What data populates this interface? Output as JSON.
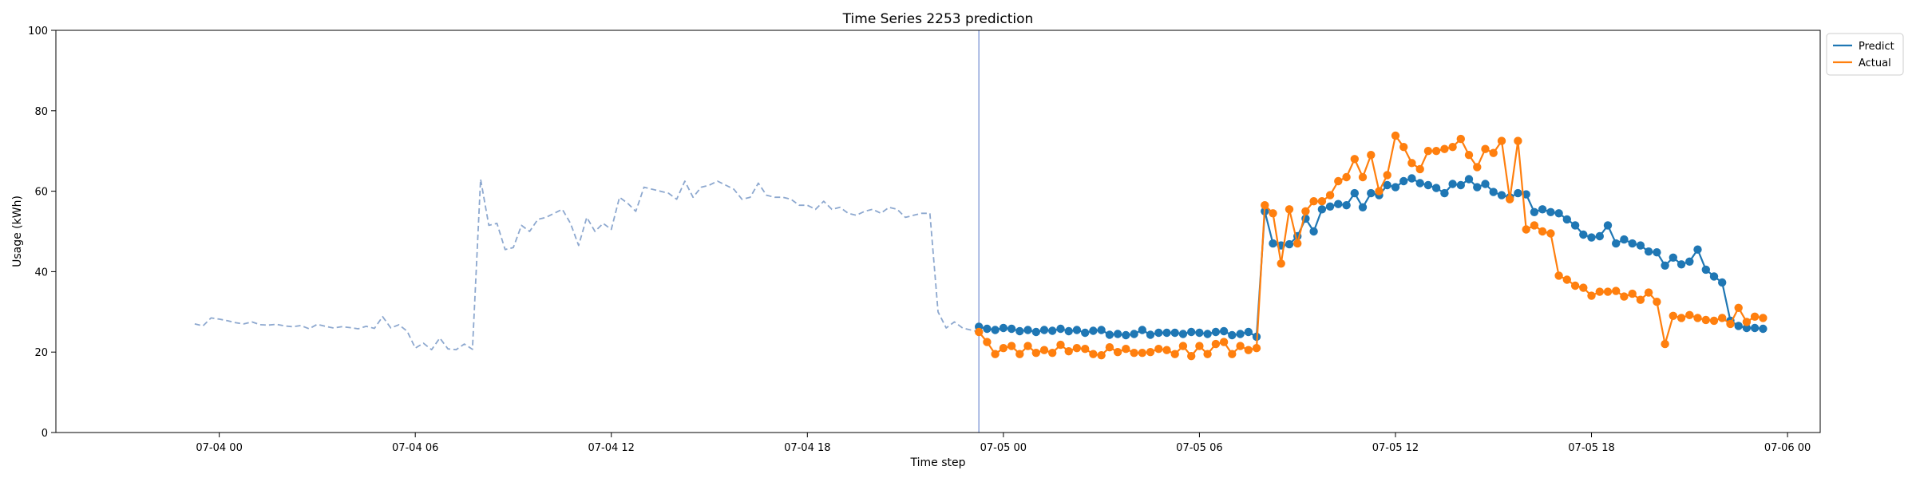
{
  "chart_data": {
    "type": "line",
    "title": "Time Series 2253 prediction",
    "xlabel": "Time step",
    "ylabel": "Usage (kWh)",
    "ylim": [
      0,
      100
    ],
    "y_ticks": [
      0,
      20,
      40,
      60,
      80,
      100
    ],
    "x_ticks": [
      {
        "at": "07-04 00:00",
        "label": "07-04 00"
      },
      {
        "at": "07-04 06:00",
        "label": "07-04 06"
      },
      {
        "at": "07-04 12:00",
        "label": "07-04 12"
      },
      {
        "at": "07-04 18:00",
        "label": "07-04 18"
      },
      {
        "at": "07-05 00:00",
        "label": "07-05 00"
      },
      {
        "at": "07-05 06:00",
        "label": "07-05 06"
      },
      {
        "at": "07-05 12:00",
        "label": "07-05 12"
      },
      {
        "at": "07-05 18:00",
        "label": "07-05 18"
      },
      {
        "at": "07-06 00:00",
        "label": "07-06 00"
      }
    ],
    "xlim": [
      "07-03 19:00",
      "07-06 01:00"
    ],
    "x_step_minutes": 15,
    "grid": false,
    "legend_position": "upper-right-outside",
    "forecast_start_marker": "07-04 23:15",
    "series": [
      {
        "name": "",
        "style": "dashed",
        "color": "#8da8cf",
        "x_start": "07-03 23:15",
        "values": [
          27,
          26.5,
          28.5,
          28.2,
          27.8,
          27.3,
          27.0,
          27.5,
          26.8,
          26.7,
          26.9,
          26.5,
          26.3,
          26.6,
          25.8,
          26.9,
          26.4,
          26.0,
          26.3,
          26.1,
          25.8,
          26.4,
          25.9,
          28.8,
          26.0,
          26.8,
          25.2,
          21.0,
          22.2,
          20.6,
          23.5,
          20.8,
          20.6,
          22.0,
          20.7,
          63.0,
          51.5,
          52.0,
          45.5,
          46.0,
          51.5,
          50.0,
          53.0,
          53.5,
          54.5,
          55.5,
          52.0,
          46.5,
          53.5,
          50.0,
          52.0,
          50.5,
          58.5,
          57.0,
          55.0,
          61.0,
          60.5,
          60.0,
          59.5,
          58.0,
          62.5,
          58.5,
          61.0,
          61.5,
          62.5,
          61.5,
          60.5,
          58.0,
          58.5,
          62.0,
          59.0,
          58.5,
          58.5,
          58.0,
          56.5,
          56.5,
          55.5,
          57.5,
          55.5,
          56.0,
          54.5,
          54.0,
          55.0,
          55.5,
          54.5,
          56.0,
          55.5,
          53.5,
          54.0,
          54.5,
          54.5,
          30.0,
          26.0,
          27.5,
          26.0,
          25.5,
          25.0
        ]
      },
      {
        "name": "Predict",
        "style": "solid-markers",
        "color": "#1f77b4",
        "x_start": "07-04 23:15",
        "values": [
          26.3,
          25.8,
          25.5,
          26.0,
          25.8,
          25.2,
          25.5,
          25.0,
          25.5,
          25.3,
          25.8,
          25.2,
          25.5,
          24.8,
          25.3,
          25.5,
          24.3,
          24.5,
          24.2,
          24.5,
          25.5,
          24.3,
          24.8,
          24.8,
          24.8,
          24.5,
          25.0,
          24.8,
          24.5,
          25.0,
          25.2,
          24.2,
          24.5,
          25.0,
          23.8,
          55.0,
          47.0,
          46.5,
          46.8,
          48.8,
          53.2,
          50.0,
          55.5,
          56.2,
          56.8,
          56.5,
          59.5,
          56.0,
          59.5,
          59.0,
          61.5,
          61.0,
          62.5,
          63.2,
          62.0,
          61.5,
          60.8,
          59.5,
          61.8,
          61.5,
          63.0,
          61.0,
          61.8,
          59.8,
          59.0,
          58.5,
          59.5,
          59.2,
          54.8,
          55.5,
          54.8,
          54.5,
          53.0,
          51.5,
          49.2,
          48.5,
          48.8,
          51.5,
          47.0,
          48.0,
          47.0,
          46.5,
          45.0,
          44.8,
          41.5,
          43.5,
          41.8,
          42.5,
          45.5,
          40.5,
          38.8,
          37.3,
          27.8,
          26.5,
          26.0,
          26.0,
          25.8
        ]
      },
      {
        "name": "Actual",
        "style": "solid-markers",
        "color": "#ff7f0e",
        "x_start": "07-04 23:15",
        "values": [
          25.0,
          22.5,
          19.5,
          21.0,
          21.5,
          19.5,
          21.5,
          19.8,
          20.5,
          19.8,
          21.8,
          20.2,
          21.0,
          20.8,
          19.5,
          19.2,
          21.2,
          20.0,
          20.8,
          19.8,
          19.8,
          20.0,
          20.8,
          20.5,
          19.5,
          21.5,
          19.0,
          21.5,
          19.5,
          22.0,
          22.5,
          19.5,
          21.5,
          20.5,
          21.0,
          56.5,
          54.5,
          42.0,
          55.5,
          47.0,
          55.0,
          57.5,
          57.5,
          59.0,
          62.5,
          63.5,
          68.0,
          63.5,
          69.0,
          60.0,
          64.0,
          73.8,
          71.0,
          67.0,
          65.5,
          70.0,
          70.0,
          70.5,
          71.0,
          73.0,
          69.0,
          66.0,
          70.5,
          69.5,
          72.5,
          58.0,
          72.5,
          50.5,
          51.5,
          50.0,
          49.5,
          39.0,
          38.0,
          36.5,
          36.0,
          34.0,
          35.0,
          35.0,
          35.2,
          33.8,
          34.5,
          33.0,
          34.8,
          32.5,
          22.0,
          29.0,
          28.5,
          29.2,
          28.5,
          28.0,
          27.8,
          28.5,
          27.0,
          31.0,
          27.5,
          28.8,
          28.5
        ]
      }
    ]
  }
}
